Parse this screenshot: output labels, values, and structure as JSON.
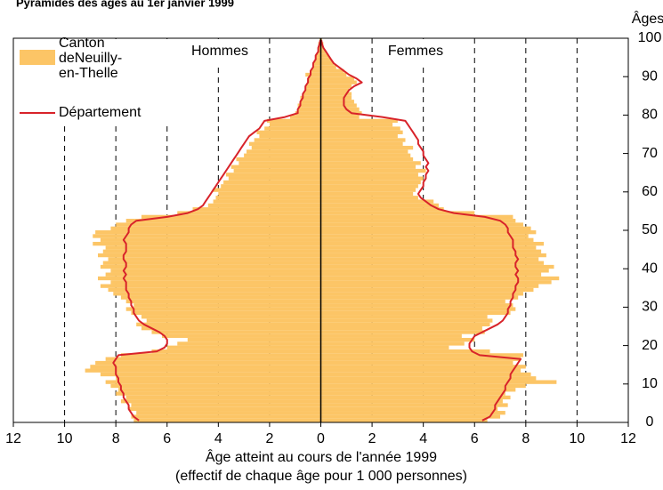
{
  "chart_data": {
    "type": "pyramid",
    "title": "Pyramides des âges au 1er janvier 1999",
    "xlabel": "Âge atteint au cours de l'année 1999",
    "xlabel2": "(effectif de chaque âge pour 1 000 personnes)",
    "ylabel": "Âges",
    "annotations": [
      "Hommes",
      "Femmes"
    ],
    "ages": [
      0,
      1,
      2,
      3,
      4,
      5,
      6,
      7,
      8,
      9,
      10,
      11,
      12,
      13,
      14,
      15,
      16,
      17,
      18,
      19,
      20,
      21,
      22,
      23,
      24,
      25,
      26,
      27,
      28,
      29,
      30,
      31,
      32,
      33,
      34,
      35,
      36,
      37,
      38,
      39,
      40,
      41,
      42,
      43,
      44,
      45,
      46,
      47,
      48,
      49,
      50,
      51,
      52,
      53,
      54,
      55,
      56,
      57,
      58,
      59,
      60,
      61,
      62,
      63,
      64,
      65,
      66,
      67,
      68,
      69,
      70,
      71,
      72,
      73,
      74,
      75,
      76,
      77,
      78,
      79,
      80,
      81,
      82,
      83,
      84,
      85,
      86,
      87,
      88,
      89,
      90,
      91,
      92,
      93,
      94,
      95,
      96,
      97,
      98,
      99
    ],
    "series": [
      {
        "name": "Canton deNeuilly-en-Thelle",
        "color": "#fcc566",
        "style": "bars",
        "hommes": [
          -7.3,
          -7.4,
          -7.2,
          -7.5,
          -7.4,
          -7.8,
          -7.6,
          -8.0,
          -7.9,
          -8.2,
          -8.4,
          -8.0,
          -8.6,
          -9.2,
          -9.0,
          -8.8,
          -8.4,
          -7.8,
          -6.6,
          -6.0,
          -5.6,
          -5.2,
          -6.2,
          -6.6,
          -7.0,
          -7.2,
          -6.8,
          -7.0,
          -7.4,
          -7.6,
          -7.3,
          -7.6,
          -7.8,
          -8.1,
          -8.3,
          -8.6,
          -8.2,
          -8.7,
          -8.4,
          -8.2,
          -8.6,
          -8.5,
          -8.3,
          -8.7,
          -8.5,
          -8.4,
          -8.9,
          -8.6,
          -8.9,
          -8.8,
          -8.2,
          -8.0,
          -7.6,
          -7.0,
          -5.6,
          -5.0,
          -4.4,
          -4.2,
          -4.1,
          -4.0,
          -4.2,
          -3.9,
          -3.8,
          -3.6,
          -3.7,
          -3.4,
          -3.5,
          -3.2,
          -3.3,
          -3.0,
          -2.9,
          -2.7,
          -2.8,
          -2.6,
          -2.4,
          -2.5,
          -2.2,
          -2.0,
          -2.1,
          -1.2,
          -1.0,
          -0.9,
          -0.9,
          -0.8,
          -0.8,
          -0.7,
          -0.6,
          -0.6,
          -0.5,
          -0.5,
          -0.6,
          -0.4,
          -0.3,
          -0.3,
          -0.2,
          -0.2,
          -0.1,
          -0.1,
          -0.1,
          -0.05
        ],
        "femmes": [
          6.5,
          7.0,
          7.2,
          6.9,
          7.3,
          7.1,
          7.4,
          7.2,
          7.6,
          8.0,
          9.2,
          8.4,
          8.2,
          7.8,
          8.0,
          7.5,
          7.8,
          7.9,
          6.6,
          5.0,
          5.6,
          6.0,
          5.5,
          6.4,
          6.3,
          6.6,
          6.7,
          6.5,
          7.4,
          7.6,
          7.5,
          7.2,
          7.7,
          7.9,
          8.3,
          8.5,
          9.0,
          9.3,
          8.6,
          8.9,
          9.1,
          8.7,
          8.5,
          8.8,
          8.6,
          8.4,
          8.7,
          8.3,
          8.1,
          8.4,
          8.2,
          7.9,
          7.6,
          7.5,
          6.0,
          4.8,
          4.6,
          4.4,
          3.8,
          3.6,
          3.7,
          3.8,
          3.9,
          4.0,
          3.8,
          4.1,
          3.7,
          3.9,
          3.6,
          3.5,
          3.4,
          3.6,
          3.2,
          3.3,
          3.0,
          3.2,
          3.1,
          2.8,
          3.0,
          1.5,
          1.6,
          1.5,
          1.4,
          1.3,
          1.2,
          1.2,
          1.1,
          1.2,
          1.4,
          1.3,
          1.0,
          0.9,
          0.6,
          0.5,
          0.4,
          0.3,
          0.2,
          0.1,
          0.1,
          0.05
        ]
      },
      {
        "name": "Département",
        "color": "#d8232a",
        "style": "line",
        "hommes": [
          -7.1,
          -7.3,
          -7.4,
          -7.5,
          -7.5,
          -7.6,
          -7.7,
          -7.7,
          -7.8,
          -7.8,
          -7.9,
          -7.9,
          -8.0,
          -8.0,
          -8.0,
          -8.1,
          -8.0,
          -7.9,
          -6.4,
          -6.1,
          -6.0,
          -6.0,
          -6.1,
          -6.3,
          -6.6,
          -6.9,
          -7.1,
          -7.2,
          -7.3,
          -7.3,
          -7.4,
          -7.4,
          -7.5,
          -7.5,
          -7.6,
          -7.6,
          -7.6,
          -7.7,
          -7.6,
          -7.7,
          -7.6,
          -7.6,
          -7.7,
          -7.7,
          -7.6,
          -7.6,
          -7.6,
          -7.7,
          -7.6,
          -7.5,
          -7.5,
          -7.4,
          -7.2,
          -6.0,
          -5.2,
          -4.8,
          -4.6,
          -4.5,
          -4.4,
          -4.3,
          -4.2,
          -4.1,
          -4.0,
          -3.9,
          -3.8,
          -3.7,
          -3.6,
          -3.5,
          -3.4,
          -3.3,
          -3.2,
          -3.1,
          -3.0,
          -2.9,
          -2.8,
          -2.6,
          -2.4,
          -2.3,
          -2.2,
          -1.4,
          -0.9,
          -0.9,
          -0.8,
          -0.8,
          -0.7,
          -0.7,
          -0.6,
          -0.6,
          -0.5,
          -0.5,
          -0.4,
          -0.4,
          -0.3,
          -0.3,
          -0.2,
          -0.2,
          -0.1,
          -0.1,
          -0.05,
          -0.02
        ],
        "femmes": [
          6.3,
          6.6,
          6.7,
          6.8,
          6.8,
          6.9,
          7.0,
          7.1,
          7.2,
          7.2,
          7.3,
          7.4,
          7.4,
          7.5,
          7.6,
          7.7,
          7.8,
          6.2,
          5.9,
          5.8,
          5.8,
          5.9,
          6.0,
          6.3,
          6.6,
          6.9,
          7.1,
          7.2,
          7.3,
          7.3,
          7.4,
          7.4,
          7.5,
          7.5,
          7.6,
          7.6,
          7.7,
          7.7,
          7.6,
          7.7,
          7.6,
          7.6,
          7.7,
          7.6,
          7.6,
          7.5,
          7.5,
          7.5,
          7.4,
          7.3,
          7.3,
          7.2,
          7.0,
          6.4,
          5.2,
          4.6,
          4.3,
          4.1,
          3.9,
          3.8,
          3.9,
          4.0,
          4.0,
          4.1,
          4.1,
          4.2,
          4.1,
          4.2,
          4.1,
          4.0,
          4.0,
          3.9,
          3.8,
          3.8,
          3.7,
          3.6,
          3.5,
          3.4,
          3.3,
          2.4,
          1.2,
          1.0,
          0.9,
          0.9,
          0.9,
          1.0,
          1.1,
          1.3,
          1.6,
          1.4,
          1.1,
          0.9,
          0.7,
          0.5,
          0.4,
          0.3,
          0.2,
          0.1,
          0.05,
          0.02
        ]
      }
    ],
    "xlim": [
      -12,
      12
    ],
    "xticks": [
      {
        "value": -12,
        "label": "12"
      },
      {
        "value": -10,
        "label": "10"
      },
      {
        "value": -8,
        "label": "8"
      },
      {
        "value": -6,
        "label": "6"
      },
      {
        "value": -4,
        "label": "4"
      },
      {
        "value": -2,
        "label": "2"
      },
      0,
      2,
      4,
      6,
      8,
      10,
      12
    ],
    "ylim": [
      0,
      100
    ],
    "yticks": [
      0,
      10,
      20,
      30,
      40,
      50,
      60,
      70,
      80,
      90,
      100
    ],
    "grid": true
  }
}
